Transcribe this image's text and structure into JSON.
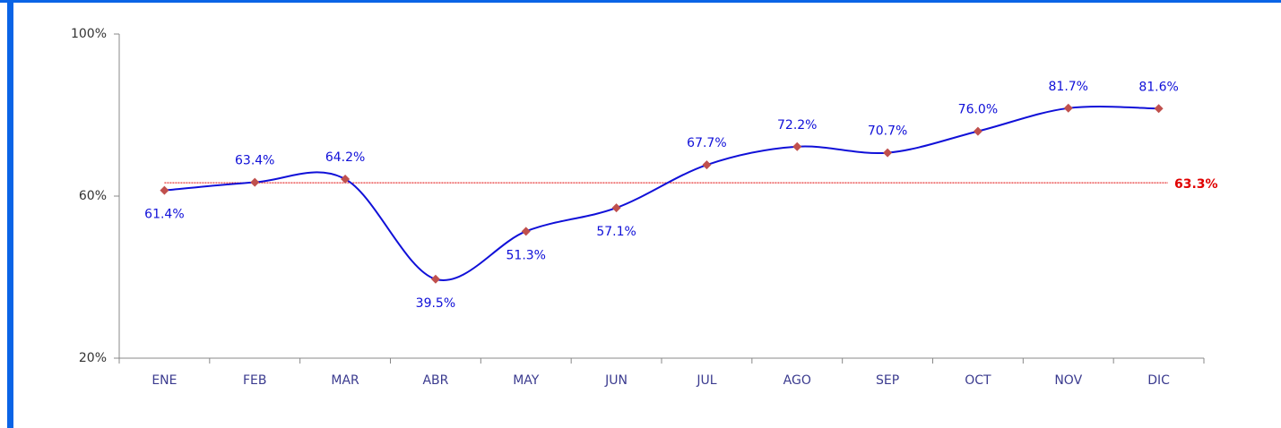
{
  "chart_data": {
    "type": "line",
    "categories": [
      "ENE",
      "FEB",
      "MAR",
      "ABR",
      "MAY",
      "JUN",
      "JUL",
      "AGO",
      "SEP",
      "OCT",
      "NOV",
      "DIC"
    ],
    "series": [
      {
        "color": "#1010d8",
        "marker_color": "#c0504d",
        "values": [
          61.4,
          63.4,
          64.2,
          39.5,
          51.3,
          57.1,
          67.7,
          72.2,
          70.7,
          76.0,
          81.7,
          81.6
        ],
        "value_labels": [
          "61.4%",
          "63.4%",
          "64.2%",
          "39.5%",
          "51.3%",
          "57.1%",
          "67.7%",
          "72.2%",
          "70.7%",
          "76.0%",
          "81.7%",
          "81.6%"
        ]
      }
    ],
    "reference": {
      "value": 63.3,
      "label": "63.3%",
      "color": "#e00000"
    },
    "ylim": [
      20,
      100
    ],
    "yticks": [
      {
        "value": 20,
        "label": "20%"
      },
      {
        "value": 60,
        "label": "60%"
      },
      {
        "value": 100,
        "label": "100%"
      }
    ],
    "grid": false
  }
}
